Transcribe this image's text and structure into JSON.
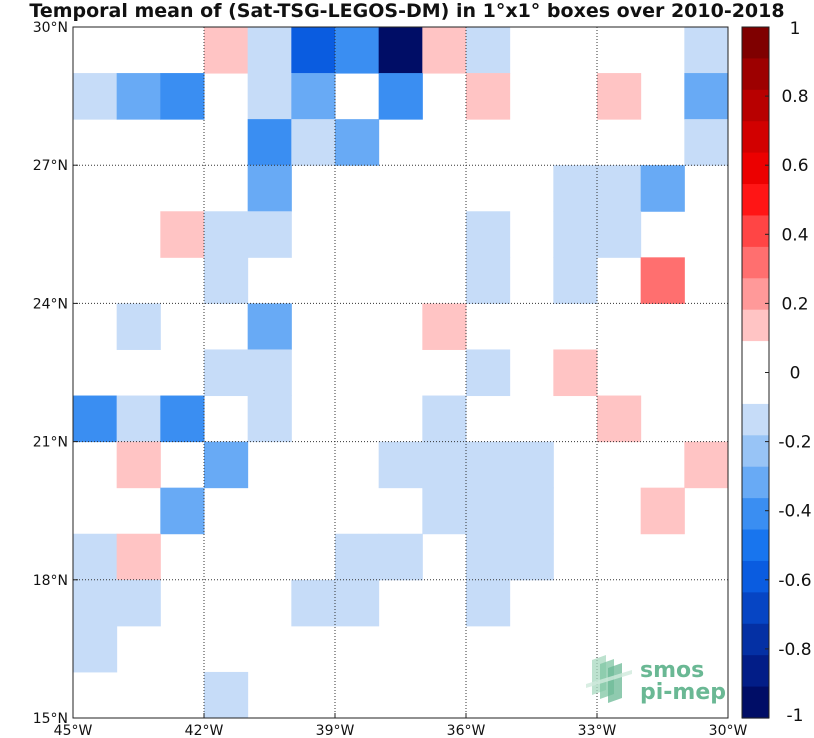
{
  "chart_data": {
    "type": "heatmap",
    "title": "Temporal mean of (Sat-TSG-LEGOS-DM) in 1°x1° boxes over 2010-2018",
    "xlabel": "",
    "ylabel": "",
    "xlim": [
      -45,
      -30
    ],
    "ylim": [
      15,
      30
    ],
    "x_ticks": [
      {
        "value": -45,
        "label": "45°W"
      },
      {
        "value": -42,
        "label": "42°W"
      },
      {
        "value": -39,
        "label": "39°W"
      },
      {
        "value": -36,
        "label": "36°W"
      },
      {
        "value": -33,
        "label": "33°W"
      },
      {
        "value": -30,
        "label": "30°W"
      }
    ],
    "y_ticks": [
      {
        "value": 15,
        "label": "15°N"
      },
      {
        "value": 18,
        "label": "18°N"
      },
      {
        "value": 21,
        "label": "21°N"
      },
      {
        "value": 24,
        "label": "24°N"
      },
      {
        "value": 27,
        "label": "27°N"
      },
      {
        "value": 30,
        "label": "30°N"
      }
    ],
    "grid": true,
    "cell_size_deg": 1,
    "colorbar": {
      "range": [
        -1,
        1
      ],
      "ticks": [
        "1",
        "0.8",
        "0.6",
        "0.4",
        "0.2",
        "0",
        "-0.2",
        "-0.4",
        "-0.6",
        "-0.8",
        "-1"
      ],
      "tick_values": [
        1,
        0.8,
        0.6,
        0.4,
        0.2,
        0,
        -0.2,
        -0.4,
        -0.6,
        -0.8,
        -1
      ],
      "colors_top_to_bottom": [
        "#7f0000",
        "#9d0000",
        "#b80000",
        "#d20000",
        "#ec0000",
        "#ff1515",
        "#ff4545",
        "#ff6f6f",
        "#ff9999",
        "#ffc4c4",
        "#ffffff",
        "#ffffff",
        "#c6dcf8",
        "#98c4f6",
        "#68aaf5",
        "#3a8ef2",
        "#1875ee",
        "#0a5ce0",
        "#0645c4",
        "#0430a4",
        "#021d87",
        "#000d66"
      ]
    },
    "cells": [
      {
        "lon": -42,
        "lat": 29,
        "value": 0.15
      },
      {
        "lon": -41,
        "lat": 29,
        "value": -0.15
      },
      {
        "lon": -40,
        "lat": 29,
        "value": -0.6
      },
      {
        "lon": -39,
        "lat": 29,
        "value": -0.4
      },
      {
        "lon": -38,
        "lat": 29,
        "value": -0.95
      },
      {
        "lon": -37,
        "lat": 29,
        "value": 0.15
      },
      {
        "lon": -36,
        "lat": 29,
        "value": -0.15
      },
      {
        "lon": -31,
        "lat": 29,
        "value": -0.15
      },
      {
        "lon": -45,
        "lat": 28,
        "value": -0.15
      },
      {
        "lon": -44,
        "lat": 28,
        "value": -0.3
      },
      {
        "lon": -43,
        "lat": 28,
        "value": -0.4
      },
      {
        "lon": -41,
        "lat": 28,
        "value": -0.15
      },
      {
        "lon": -40,
        "lat": 28,
        "value": -0.3
      },
      {
        "lon": -38,
        "lat": 28,
        "value": -0.4
      },
      {
        "lon": -36,
        "lat": 28,
        "value": 0.15
      },
      {
        "lon": -33,
        "lat": 28,
        "value": 0.15
      },
      {
        "lon": -31,
        "lat": 28,
        "value": -0.3
      },
      {
        "lon": -41,
        "lat": 27,
        "value": -0.4
      },
      {
        "lon": -40,
        "lat": 27,
        "value": -0.15
      },
      {
        "lon": -39,
        "lat": 27,
        "value": -0.3
      },
      {
        "lon": -31,
        "lat": 27,
        "value": -0.15
      },
      {
        "lon": -41,
        "lat": 26,
        "value": -0.3
      },
      {
        "lon": -34,
        "lat": 26,
        "value": -0.15
      },
      {
        "lon": -33,
        "lat": 26,
        "value": -0.15
      },
      {
        "lon": -32,
        "lat": 26,
        "value": -0.3
      },
      {
        "lon": -43,
        "lat": 25,
        "value": 0.15
      },
      {
        "lon": -42,
        "lat": 25,
        "value": -0.15
      },
      {
        "lon": -41,
        "lat": 25,
        "value": -0.15
      },
      {
        "lon": -36,
        "lat": 25,
        "value": -0.15
      },
      {
        "lon": -34,
        "lat": 25,
        "value": -0.15
      },
      {
        "lon": -33,
        "lat": 25,
        "value": -0.15
      },
      {
        "lon": -42,
        "lat": 24,
        "value": -0.15
      },
      {
        "lon": -36,
        "lat": 24,
        "value": -0.15
      },
      {
        "lon": -34,
        "lat": 24,
        "value": -0.15
      },
      {
        "lon": -32,
        "lat": 24,
        "value": 0.35
      },
      {
        "lon": -44,
        "lat": 23,
        "value": -0.15
      },
      {
        "lon": -41,
        "lat": 23,
        "value": -0.3
      },
      {
        "lon": -37,
        "lat": 23,
        "value": 0.15
      },
      {
        "lon": -42,
        "lat": 22,
        "value": -0.15
      },
      {
        "lon": -41,
        "lat": 22,
        "value": -0.15
      },
      {
        "lon": -36,
        "lat": 22,
        "value": -0.15
      },
      {
        "lon": -34,
        "lat": 22,
        "value": 0.15
      },
      {
        "lon": -45,
        "lat": 21,
        "value": -0.4
      },
      {
        "lon": -44,
        "lat": 21,
        "value": -0.15
      },
      {
        "lon": -43,
        "lat": 21,
        "value": -0.4
      },
      {
        "lon": -41,
        "lat": 21,
        "value": -0.15
      },
      {
        "lon": -37,
        "lat": 21,
        "value": -0.15
      },
      {
        "lon": -33,
        "lat": 21,
        "value": 0.15
      },
      {
        "lon": -44,
        "lat": 20,
        "value": 0.15
      },
      {
        "lon": -42,
        "lat": 20,
        "value": -0.3
      },
      {
        "lon": -38,
        "lat": 20,
        "value": -0.15
      },
      {
        "lon": -37,
        "lat": 20,
        "value": -0.15
      },
      {
        "lon": -36,
        "lat": 20,
        "value": -0.15
      },
      {
        "lon": -35,
        "lat": 20,
        "value": -0.15
      },
      {
        "lon": -31,
        "lat": 20,
        "value": 0.15
      },
      {
        "lon": -43,
        "lat": 19,
        "value": -0.3
      },
      {
        "lon": -37,
        "lat": 19,
        "value": -0.15
      },
      {
        "lon": -36,
        "lat": 19,
        "value": -0.15
      },
      {
        "lon": -35,
        "lat": 19,
        "value": -0.15
      },
      {
        "lon": -32,
        "lat": 19,
        "value": 0.15
      },
      {
        "lon": -45,
        "lat": 18,
        "value": -0.15
      },
      {
        "lon": -44,
        "lat": 18,
        "value": 0.15
      },
      {
        "lon": -39,
        "lat": 18,
        "value": -0.15
      },
      {
        "lon": -38,
        "lat": 18,
        "value": -0.15
      },
      {
        "lon": -36,
        "lat": 18,
        "value": -0.15
      },
      {
        "lon": -35,
        "lat": 18,
        "value": -0.15
      },
      {
        "lon": -45,
        "lat": 17,
        "value": -0.15
      },
      {
        "lon": -44,
        "lat": 17,
        "value": -0.15
      },
      {
        "lon": -40,
        "lat": 17,
        "value": -0.15
      },
      {
        "lon": -39,
        "lat": 17,
        "value": -0.15
      },
      {
        "lon": -36,
        "lat": 17,
        "value": -0.15
      },
      {
        "lon": -45,
        "lat": 16,
        "value": -0.15
      },
      {
        "lon": -42,
        "lat": 15,
        "value": -0.15
      }
    ]
  },
  "logo": {
    "line1": "smos",
    "line2": "pi-mep"
  }
}
